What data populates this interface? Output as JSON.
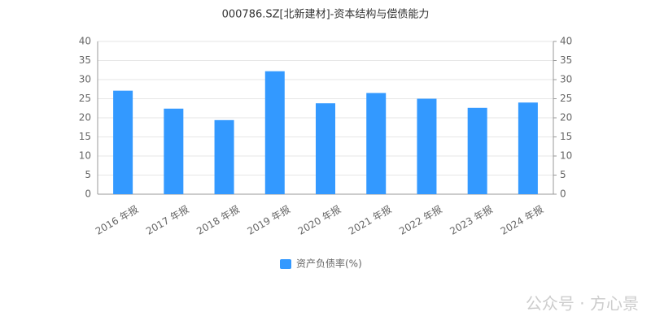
{
  "chart_data": {
    "type": "bar",
    "title": "000786.SZ[北新建材]-资本结构与偿债能力",
    "categories": [
      "2016 年报",
      "2017 年报",
      "2018 年报",
      "2019 年报",
      "2020 年报",
      "2021 年报",
      "2022 年报",
      "2023 年报",
      "2024 年报"
    ],
    "series": [
      {
        "name": "资产负债率(%)",
        "color": "#3399ff",
        "values": [
          27.1,
          22.4,
          19.4,
          32.2,
          23.8,
          26.5,
          25.0,
          22.6,
          24.0
        ]
      }
    ],
    "ylim": [
      0,
      40
    ],
    "yticks": [
      0,
      5,
      10,
      15,
      20,
      25,
      30,
      35,
      40
    ],
    "y2lim": [
      0,
      40
    ],
    "y2ticks": [
      0,
      5,
      10,
      15,
      20,
      25,
      30,
      35,
      40
    ],
    "grid": true,
    "legend": "bottom",
    "watermark": "公众号 · 方心景"
  }
}
